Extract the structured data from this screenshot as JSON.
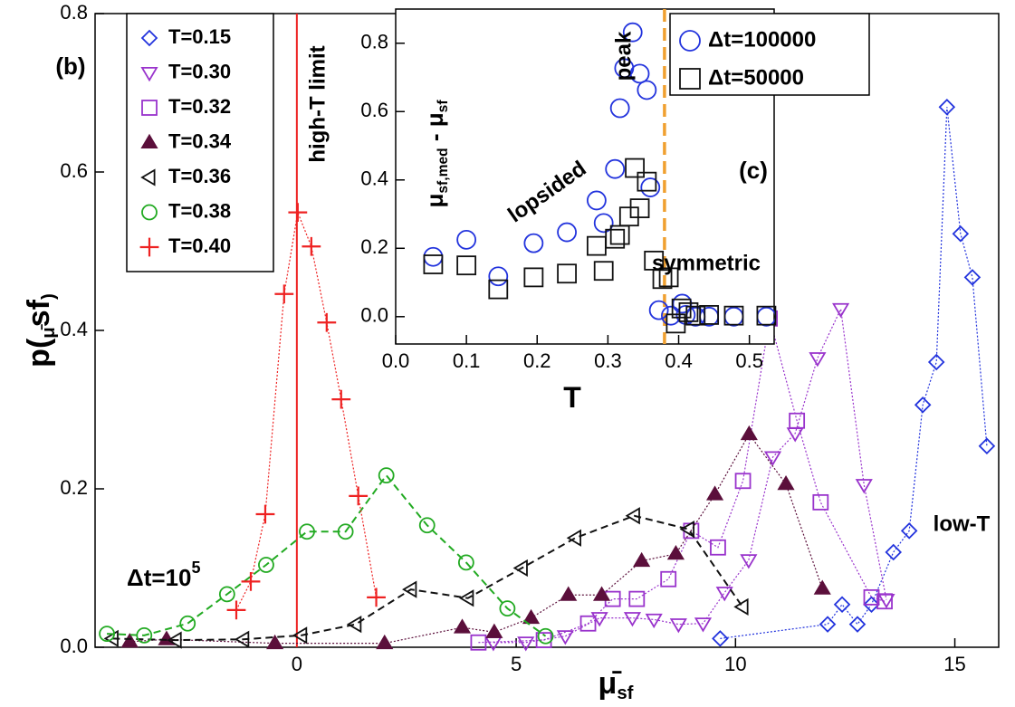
{
  "chart_data": [
    {
      "type": "line",
      "ylabel_parts": [
        "p(",
        "μ̄",
        "sf",
        ")"
      ],
      "xlabel_parts": [
        "μ̄",
        "sf"
      ],
      "xlim": [
        -4.6,
        16
      ],
      "ylim": [
        0,
        0.8
      ],
      "xticks": [
        0,
        5,
        10,
        15
      ],
      "yticks": [
        {
          "value": 0,
          "label": "0.0"
        },
        0.2,
        0.4,
        0.6,
        0.8
      ],
      "legend": "upper left",
      "vline": {
        "x": 0,
        "color": "#ee2222"
      },
      "annotations": [
        "(b)",
        "high-T limit",
        "low-T"
      ],
      "dt_label": {
        "base": "Δt=10",
        "sup": "5"
      },
      "series": [
        {
          "name": "T=0.15",
          "color": "#2233dd",
          "marker": "diamond",
          "dash": "dotted",
          "x": [
            9.65,
            12.1,
            12.43,
            12.78,
            13.1,
            13.6,
            13.96,
            14.27,
            14.58,
            14.82,
            15.13,
            15.4,
            15.73
          ],
          "values": [
            0.011,
            0.029,
            0.054,
            0.029,
            0.054,
            0.12,
            0.147,
            0.306,
            0.36,
            0.682,
            0.522,
            0.467,
            0.254
          ]
        },
        {
          "name": "T=0.30",
          "color": "#9933cc",
          "marker": "tri-down",
          "dash": "dotted",
          "x": [
            4.48,
            5.22,
            6.12,
            6.9,
            7.65,
            8.14,
            8.7,
            9.26,
            9.75,
            10.3,
            10.85,
            11.36,
            11.87,
            12.4,
            12.93,
            13.44
          ],
          "values": [
            0.006,
            0.006,
            0.014,
            0.037,
            0.037,
            0.035,
            0.029,
            0.03,
            0.069,
            0.11,
            0.24,
            0.27,
            0.365,
            0.427,
            0.205,
            0.06
          ]
        },
        {
          "name": "T=0.32",
          "color": "#9933cc",
          "marker": "square",
          "dash": "dotted",
          "x": [
            4.14,
            5.63,
            6.64,
            7.2,
            7.75,
            8.47,
            8.99,
            9.6,
            10.17,
            10.78,
            11.4,
            11.94,
            13.1,
            13.4
          ],
          "values": [
            0.006,
            0.009,
            0.03,
            0.061,
            0.061,
            0.086,
            0.147,
            0.126,
            0.21,
            0.415,
            0.286,
            0.183,
            0.063,
            0.058
          ]
        },
        {
          "name": "T=0.34",
          "color": "#5b0f3b",
          "marker": "tri-up-filled",
          "dash": "dotted",
          "x": [
            -3.81,
            -2.97,
            -0.5,
            2.0,
            3.77,
            4.5,
            5.34,
            6.19,
            6.95,
            7.86,
            8.64,
            9.53,
            10.31,
            11.15,
            11.98
          ],
          "values": [
            0.007,
            0.01,
            0.005,
            0.005,
            0.025,
            0.019,
            0.037,
            0.066,
            0.066,
            0.109,
            0.118,
            0.193,
            0.269,
            0.206,
            0.074
          ]
        },
        {
          "name": "T=0.36",
          "color": "#111111",
          "marker": "tri-left",
          "dash": "dashed",
          "x": [
            -4.2,
            -2.76,
            -1.22,
            0.1,
            1.34,
            2.6,
            3.9,
            5.13,
            6.35,
            7.69,
            8.93,
            10.16
          ],
          "values": [
            0.011,
            0.009,
            0.01,
            0.015,
            0.029,
            0.073,
            0.062,
            0.1,
            0.138,
            0.166,
            0.149,
            0.051
          ]
        },
        {
          "name": "T=0.38",
          "color": "#22aa22",
          "marker": "circle",
          "dash": "dashed",
          "x": [
            -4.33,
            -3.48,
            -2.49,
            -1.59,
            -0.7,
            0.23,
            1.11,
            2.04,
            2.97,
            3.86,
            4.8,
            5.67
          ],
          "values": [
            0.017,
            0.015,
            0.03,
            0.067,
            0.104,
            0.146,
            0.146,
            0.217,
            0.154,
            0.107,
            0.049,
            0.014
          ]
        },
        {
          "name": "T=0.40",
          "color": "#ee2222",
          "marker": "plus",
          "dash": "dotted",
          "x": [
            -1.38,
            -1.05,
            -0.72,
            -0.29,
            0.02,
            0.33,
            0.68,
            1.01,
            1.4,
            1.81
          ],
          "values": [
            0.047,
            0.083,
            0.168,
            0.446,
            0.549,
            0.506,
            0.41,
            0.313,
            0.191,
            0.063
          ]
        }
      ]
    },
    {
      "type": "scatter",
      "ylabel_parts": [
        "μ",
        "sf,med",
        " - μ",
        "sf"
      ],
      "xlabel_parts": [
        "T"
      ],
      "xlim": [
        0,
        0.535
      ],
      "ylim": [
        -0.08,
        0.9
      ],
      "xticks": [
        {
          "value": 0,
          "label": "0.0"
        },
        0.1,
        0.2,
        0.3,
        0.4,
        0.5
      ],
      "yticks": [
        {
          "value": 0,
          "label": "0.0"
        },
        0.2,
        0.4,
        0.6,
        0.8
      ],
      "legend": "upper right",
      "vline": {
        "x": 0.38,
        "color": "#f0a030"
      },
      "annotations": [
        "(c)",
        "peak",
        "lopsided",
        "symmetric"
      ],
      "series": [
        {
          "name": "Δt=100000",
          "color": "#2233dd",
          "marker": "circle",
          "x": [
            0.053,
            0.1,
            0.145,
            0.195,
            0.242,
            0.284,
            0.294,
            0.31,
            0.317,
            0.323,
            0.335,
            0.345,
            0.355,
            0.36,
            0.372,
            0.389,
            0.405,
            0.41,
            0.424,
            0.443,
            0.478,
            0.524
          ],
          "values": [
            0.175,
            0.225,
            0.118,
            0.215,
            0.247,
            0.34,
            0.274,
            0.432,
            0.61,
            0.727,
            0.832,
            0.711,
            0.663,
            0.378,
            0.019,
            0.003,
            0.038,
            0.005,
            0,
            0,
            0,
            0
          ]
        },
        {
          "name": "Δt=50000",
          "color": "#111111",
          "marker": "square",
          "x": [
            0.053,
            0.1,
            0.145,
            0.195,
            0.242,
            0.284,
            0.294,
            0.31,
            0.317,
            0.33,
            0.338,
            0.345,
            0.355,
            0.365,
            0.377,
            0.386,
            0.396,
            0.404,
            0.414,
            0.424,
            0.443,
            0.478,
            0.524
          ],
          "values": [
            0.153,
            0.15,
            0.08,
            0.115,
            0.126,
            0.207,
            0.134,
            0.228,
            0.239,
            0.293,
            0.435,
            0.317,
            0.395,
            0.164,
            0.11,
            0.115,
            -0.02,
            0.024,
            0.013,
            0.003,
            0.005,
            0.003,
            0.003
          ]
        }
      ]
    }
  ]
}
